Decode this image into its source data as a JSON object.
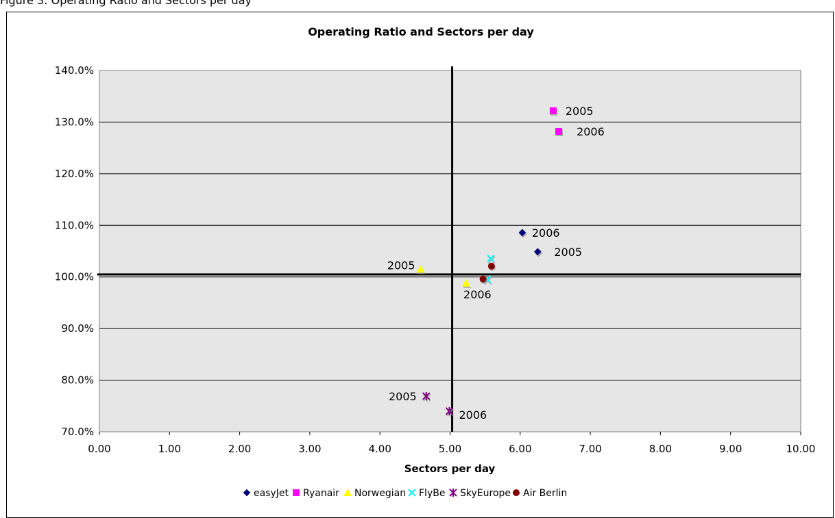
{
  "page": {
    "caption": "Figure 3: Operating Ratio and Sectors per day"
  },
  "chart_data": {
    "type": "scatter",
    "title": "Operating Ratio and Sectors per day",
    "xlabel": "Sectors per day",
    "ylabel": "",
    "xlim": [
      0,
      10
    ],
    "ylim": [
      0.7,
      1.4
    ],
    "x_ticks": [
      "0.00",
      "1.00",
      "2.00",
      "3.00",
      "4.00",
      "5.00",
      "6.00",
      "7.00",
      "8.00",
      "9.00",
      "10.00"
    ],
    "y_ticks": [
      "70.0%",
      "80.0%",
      "90.0%",
      "100.0%",
      "110.0%",
      "120.0%",
      "130.0%",
      "140.0%"
    ],
    "grid": true,
    "legend_position": "bottom",
    "reference_lines": {
      "x": 5.03,
      "y": 1.005
    },
    "series": [
      {
        "name": "easyJet",
        "color": "#000080",
        "marker": "diamond",
        "points": [
          {
            "x": 6.25,
            "y": 1.049,
            "label": "2005"
          },
          {
            "x": 6.03,
            "y": 1.086,
            "label": "2006"
          }
        ]
      },
      {
        "name": "Ryanair",
        "color": "#ff00ff",
        "marker": "square",
        "points": [
          {
            "x": 6.47,
            "y": 1.322,
            "label": "2005"
          },
          {
            "x": 6.55,
            "y": 1.282,
            "label": "2006"
          }
        ]
      },
      {
        "name": "Norwegian",
        "color": "#ffff00",
        "marker": "triangle",
        "points": [
          {
            "x": 4.58,
            "y": 1.015,
            "label": "2005"
          },
          {
            "x": 5.23,
            "y": 0.988,
            "label": "2006"
          }
        ]
      },
      {
        "name": "FlyBe",
        "color": "#00ffff",
        "marker": "x",
        "points": [
          {
            "x": 5.58,
            "y": 1.036,
            "label": ""
          },
          {
            "x": 5.53,
            "y": 0.995,
            "label": ""
          }
        ]
      },
      {
        "name": "SkyEurope",
        "color": "#800080",
        "marker": "star",
        "points": [
          {
            "x": 4.66,
            "y": 0.769,
            "label": "2005"
          },
          {
            "x": 4.99,
            "y": 0.74,
            "label": "2006"
          }
        ]
      },
      {
        "name": "Air Berlin",
        "color": "#800000",
        "marker": "circle",
        "points": [
          {
            "x": 5.59,
            "y": 1.021,
            "label": ""
          },
          {
            "x": 5.47,
            "y": 0.996,
            "label": ""
          }
        ]
      }
    ]
  }
}
